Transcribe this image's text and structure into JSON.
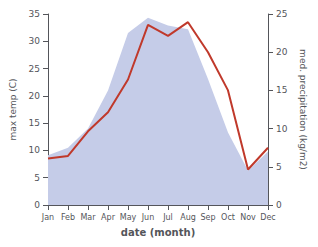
{
  "chart_data": {
    "type": "line",
    "xlabel": "date (month)",
    "ylabel": "max temp (C)",
    "y2label": "med. precipitation (kg/m2)",
    "categories": [
      "Jan",
      "Feb",
      "Mar",
      "Apr",
      "May",
      "Jun",
      "Jul",
      "Aug",
      "Sep",
      "Oct",
      "Nov",
      "Dec"
    ],
    "series": [
      {
        "type": "area",
        "color": "#c5cce8",
        "axis": "y2",
        "values": [
          6.5,
          7.5,
          10.0,
          15.0,
          22.5,
          24.5,
          23.5,
          23.0,
          16.5,
          9.5,
          4.5,
          7.0
        ]
      },
      {
        "type": "line",
        "color": "#c0392b",
        "values": [
          8.5,
          9.0,
          13.5,
          17.0,
          23.0,
          33.0,
          31.0,
          33.5,
          28.0,
          21.0,
          6.5,
          10.5
        ]
      }
    ],
    "ylim": [
      0,
      35
    ],
    "yticks": [
      0,
      5,
      10,
      15,
      20,
      25,
      30,
      35
    ],
    "y2lim": [
      0,
      25
    ],
    "y2ticks": [
      0,
      5,
      10,
      15,
      20,
      25
    ],
    "grid": false
  }
}
